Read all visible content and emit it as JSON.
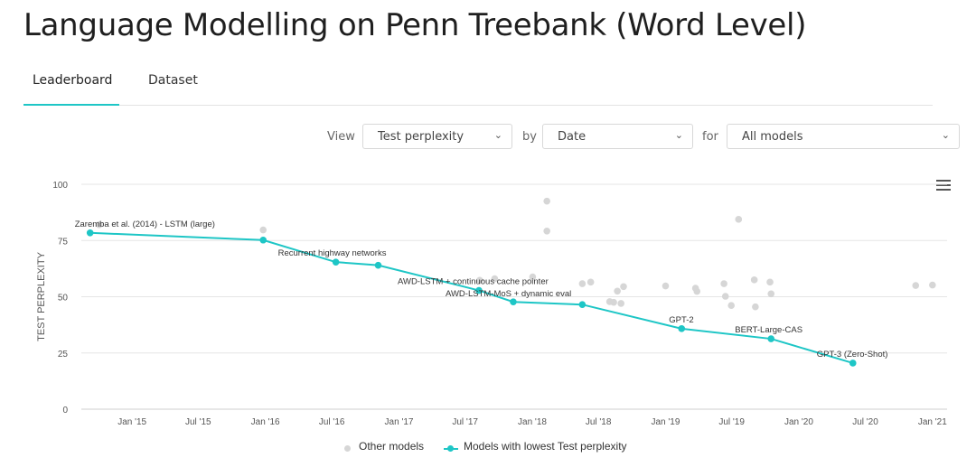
{
  "page": {
    "title": "Language Modelling on Penn Treebank (Word Level)"
  },
  "tabs": [
    {
      "label": "Leaderboard",
      "active": true
    },
    {
      "label": "Dataset",
      "active": false
    }
  ],
  "controls": {
    "view_label": "View",
    "view_value": "Test perplexity",
    "by_label": "by",
    "by_value": "Date",
    "for_label": "for",
    "for_value": "All models"
  },
  "colors": {
    "accent": "#1ec6c6",
    "other": "#d6d6d6",
    "grid": "#e6e6e6"
  },
  "icons": {
    "chart_menu": "hamburger-menu-icon",
    "select_chevron": "chevron-down-icon"
  },
  "legend": {
    "other": "Other models",
    "best": "Models with lowest Test perplexity"
  },
  "chart_data": {
    "type": "scatter",
    "title": "",
    "xlabel": "",
    "ylabel": "TEST PERPLEXITY",
    "ylim": [
      0,
      100
    ],
    "yticks": [
      0,
      25,
      50,
      75,
      100
    ],
    "xlim": [
      "2014-08-15",
      "2021-02-10"
    ],
    "xticks": [
      {
        "date": "2015-01-01",
        "label": "Jan '15"
      },
      {
        "date": "2015-07-01",
        "label": "Jul '15"
      },
      {
        "date": "2016-01-01",
        "label": "Jan '16"
      },
      {
        "date": "2016-07-01",
        "label": "Jul '16"
      },
      {
        "date": "2017-01-01",
        "label": "Jan '17"
      },
      {
        "date": "2017-07-01",
        "label": "Jul '17"
      },
      {
        "date": "2018-01-01",
        "label": "Jan '18"
      },
      {
        "date": "2018-07-01",
        "label": "Jul '18"
      },
      {
        "date": "2019-01-01",
        "label": "Jan '19"
      },
      {
        "date": "2019-07-01",
        "label": "Jul '19"
      },
      {
        "date": "2020-01-01",
        "label": "Jan '20"
      },
      {
        "date": "2020-07-01",
        "label": "Jul '20"
      },
      {
        "date": "2021-01-01",
        "label": "Jan '21"
      }
    ],
    "grid": true,
    "legend_position": "bottom-center",
    "series": [
      {
        "name": "Models with lowest Test perplexity",
        "kind": "line",
        "points": [
          {
            "x": "2014-09-08",
            "y": 78.4,
            "label": "Zaremba et al. (2014) - LSTM (large)"
          },
          {
            "x": "2015-12-26",
            "y": 75.2,
            "label": ""
          },
          {
            "x": "2016-07-12",
            "y": 65.4,
            "label": "Recurrent highway networks"
          },
          {
            "x": "2016-11-05",
            "y": 64.0,
            "label": ""
          },
          {
            "x": "2017-08-08",
            "y": 52.8,
            "label": "AWD-LSTM + continuous cache pointer"
          },
          {
            "x": "2017-11-10",
            "y": 47.7,
            "label": "AWD-LSTM-MoS + dynamic eval"
          },
          {
            "x": "2018-05-18",
            "y": 46.5,
            "label": ""
          },
          {
            "x": "2019-02-14",
            "y": 35.8,
            "label": "GPT-2"
          },
          {
            "x": "2019-10-17",
            "y": 31.3,
            "label": "BERT-Large-CAS"
          },
          {
            "x": "2020-05-28",
            "y": 20.5,
            "label": "GPT-3 (Zero-Shot)"
          }
        ]
      },
      {
        "name": "Other models",
        "kind": "scatter",
        "points": [
          {
            "x": "2014-10-03",
            "y": 82.0
          },
          {
            "x": "2015-12-26",
            "y": 79.7
          },
          {
            "x": "2017-08-10",
            "y": 57.3
          },
          {
            "x": "2017-09-20",
            "y": 58.0
          },
          {
            "x": "2018-01-02",
            "y": 58.8
          },
          {
            "x": "2018-02-10",
            "y": 92.5
          },
          {
            "x": "2018-02-10",
            "y": 79.2
          },
          {
            "x": "2018-05-18",
            "y": 55.8
          },
          {
            "x": "2018-06-10",
            "y": 56.5
          },
          {
            "x": "2018-08-01",
            "y": 47.8
          },
          {
            "x": "2018-08-12",
            "y": 47.5
          },
          {
            "x": "2018-08-22",
            "y": 52.5
          },
          {
            "x": "2018-09-01",
            "y": 47.0
          },
          {
            "x": "2018-09-08",
            "y": 54.5
          },
          {
            "x": "2019-01-01",
            "y": 54.8
          },
          {
            "x": "2019-03-24",
            "y": 53.8
          },
          {
            "x": "2019-03-28",
            "y": 52.4
          },
          {
            "x": "2019-06-10",
            "y": 55.8
          },
          {
            "x": "2019-06-14",
            "y": 50.2
          },
          {
            "x": "2019-06-30",
            "y": 46.1
          },
          {
            "x": "2019-07-20",
            "y": 84.4
          },
          {
            "x": "2019-09-01",
            "y": 57.5
          },
          {
            "x": "2019-09-04",
            "y": 45.5
          },
          {
            "x": "2019-10-14",
            "y": 56.5
          },
          {
            "x": "2019-10-17",
            "y": 51.3
          },
          {
            "x": "2020-11-16",
            "y": 55.0
          },
          {
            "x": "2021-01-01",
            "y": 55.2
          }
        ]
      }
    ]
  }
}
